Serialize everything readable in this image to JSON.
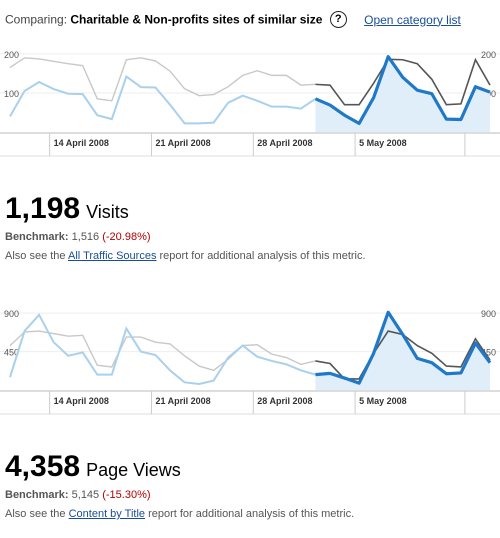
{
  "header": {
    "prefix": "Comparing:",
    "category": "Charitable & Non-profits sites of similar size",
    "help_icon": "help-icon",
    "link": "Open category list"
  },
  "colors": {
    "site_line": "#1f78c8",
    "site_fill": "#dfeef9",
    "site_line_past": "#a9d0ec",
    "benchmark_line_current": "#555555",
    "benchmark_line_past": "#c8c8c8",
    "link": "#1a4c99",
    "negative": "#b00000"
  },
  "visits": {
    "chart_data": {
      "type": "line",
      "x_labels": [
        "14 April 2008",
        "21 April 2008",
        "28 April 2008",
        "5 May 2008"
      ],
      "y_ticks_left": [
        "200",
        "100"
      ],
      "y_ticks_right": [
        "200",
        "100"
      ],
      "ylim": [
        0,
        210
      ],
      "highlight_start_index": 21,
      "series": [
        {
          "values": [
            40,
            105,
            128,
            110,
            98,
            97,
            43,
            33,
            142,
            115,
            114,
            70,
            22,
            22,
            24,
            75,
            93,
            80,
            65,
            65,
            60,
            85,
            69,
            43,
            22,
            88,
            193,
            140,
            107,
            98,
            33,
            32,
            116,
            102
          ]
        },
        {
          "values": [
            165,
            190,
            187,
            181,
            175,
            170,
            85,
            80,
            185,
            190,
            182,
            156,
            111,
            93,
            96,
            116,
            145,
            157,
            145,
            145,
            120,
            122,
            120,
            70,
            70,
            125,
            186,
            185,
            175,
            135,
            70,
            72,
            185,
            120
          ]
        }
      ]
    },
    "value": "1,198",
    "unit": "Visits",
    "benchmark_label": "Benchmark:",
    "benchmark_value": "1,516",
    "benchmark_change": "(-20.98%)",
    "note_before": "Also see the ",
    "note_link": "All Traffic Sources",
    "note_after": " report for additional analysis of this metric."
  },
  "pageviews": {
    "chart_data": {
      "type": "line",
      "x_labels": [
        "14 April 2008",
        "21 April 2008",
        "28 April 2008",
        "5 May 2008"
      ],
      "y_ticks_left": [
        "900",
        "450"
      ],
      "y_ticks_right": [
        "900",
        "450"
      ],
      "ylim": [
        0,
        960
      ],
      "highlight_start_index": 21,
      "series": [
        {
          "values": [
            150,
            690,
            880,
            560,
            400,
            440,
            180,
            180,
            720,
            450,
            410,
            230,
            90,
            70,
            110,
            380,
            520,
            390,
            340,
            300,
            230,
            180,
            195,
            140,
            80,
            430,
            910,
            650,
            370,
            320,
            190,
            200,
            550,
            320
          ]
        },
        {
          "values": [
            520,
            680,
            690,
            660,
            630,
            640,
            290,
            270,
            620,
            620,
            560,
            540,
            400,
            280,
            230,
            360,
            520,
            530,
            420,
            380,
            300,
            340,
            310,
            130,
            130,
            430,
            690,
            650,
            520,
            430,
            280,
            270,
            600,
            350
          ]
        }
      ]
    },
    "value": "4,358",
    "unit": "Page Views",
    "benchmark_label": "Benchmark:",
    "benchmark_value": "5,145",
    "benchmark_change": "(-15.30%)",
    "note_before": "Also see the ",
    "note_link": "Content by Title",
    "note_after": " report for additional analysis of this metric."
  }
}
